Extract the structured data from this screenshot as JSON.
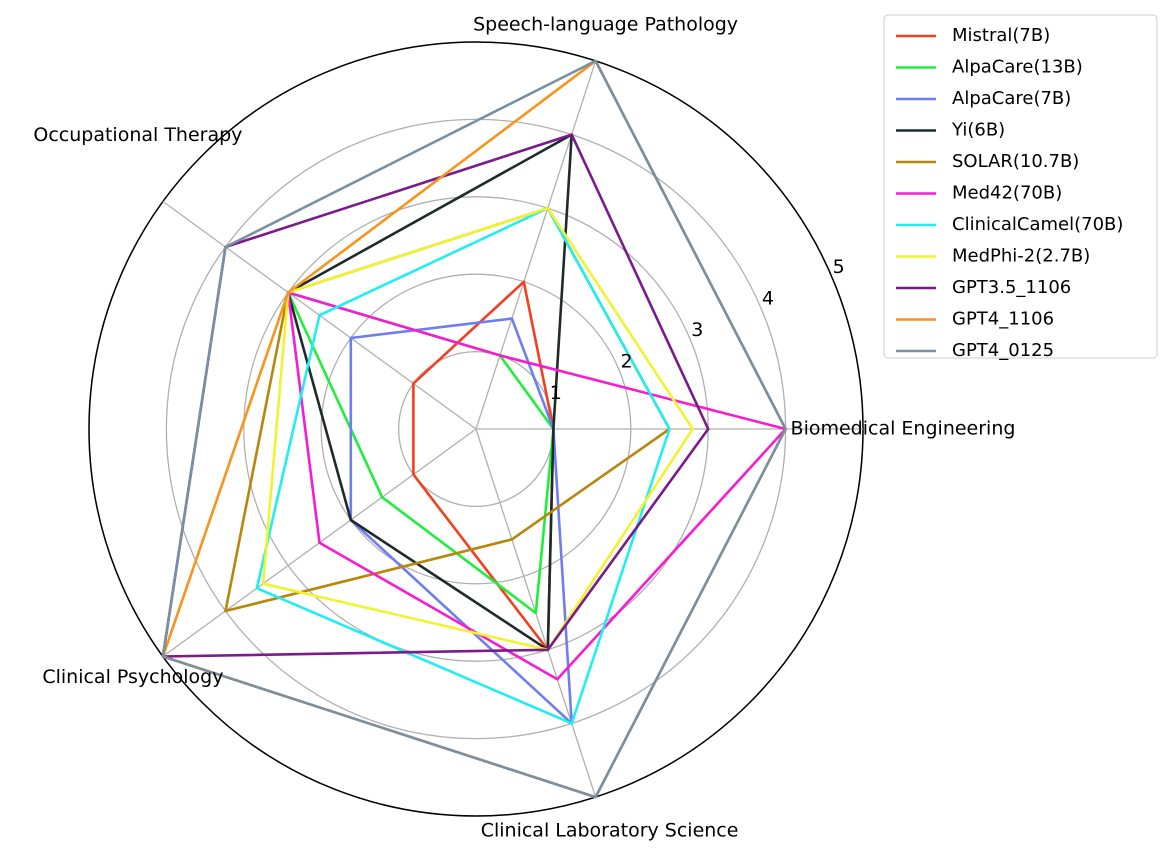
{
  "chart_data": {
    "type": "radar",
    "categories": [
      "Biomedical Engineering",
      "Speech-language Pathology",
      "Occupational Therapy",
      "Clinical Psychology",
      "Clinical Laboratory Science"
    ],
    "ylim": [
      0,
      5
    ],
    "yticks": [
      1,
      2,
      3,
      4,
      5
    ],
    "grid": true,
    "legend": "upper right",
    "series": [
      {
        "name": "Mistral(7B)",
        "color": "#f2401f",
        "values": [
          1,
          2,
          1,
          1,
          3
        ]
      },
      {
        "name": "AlpaCare(13B)",
        "color": "#1fef3c",
        "values": [
          1,
          1,
          3,
          1.5,
          2.5
        ]
      },
      {
        "name": "AlpaCare(7B)",
        "color": "#6e7ef0",
        "values": [
          1,
          1.5,
          2,
          2,
          4
        ]
      },
      {
        "name": "Yi(6B)",
        "color": "#1f2b2b",
        "values": [
          1,
          4,
          3,
          2,
          3
        ]
      },
      {
        "name": "SOLAR(10.7B)",
        "color": "#b8860b",
        "values": [
          2.5,
          3,
          3,
          4,
          1.5
        ]
      },
      {
        "name": "Med42(70B)",
        "color": "#f71bd3",
        "values": [
          4,
          1,
          3,
          2.5,
          3.4
        ]
      },
      {
        "name": "ClinicalCamel(70B)",
        "color": "#20eef0",
        "values": [
          2.5,
          3,
          2.5,
          3.5,
          4
        ]
      },
      {
        "name": "MedPhi-2(2.7B)",
        "color": "#f2f230",
        "values": [
          2.8,
          3,
          3,
          3.4,
          3
        ]
      },
      {
        "name": "GPT3.5_1106",
        "color": "#7b1a8c",
        "values": [
          3,
          4,
          4,
          5,
          3
        ]
      },
      {
        "name": "GPT4_1106",
        "color": "#f7941d",
        "values": [
          4,
          5,
          3,
          5,
          5
        ]
      },
      {
        "name": "GPT4_0125",
        "color": "#7a8fa0",
        "values": [
          4,
          5,
          4,
          5,
          5
        ]
      }
    ]
  }
}
